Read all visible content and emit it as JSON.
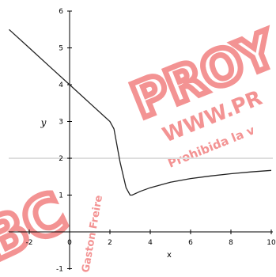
{
  "chart_data": {
    "type": "line",
    "title": "",
    "xlabel": "x",
    "ylabel": "y",
    "xlim": [
      -3,
      10
    ],
    "ylim": [
      -1,
      6
    ],
    "xticks": [
      -2,
      0,
      2,
      4,
      6,
      8,
      10
    ],
    "yticks": [
      -1,
      1,
      2,
      3,
      4,
      5,
      6
    ],
    "x_tick_labels": [
      "-2",
      "0",
      "2",
      "4",
      "6",
      "8",
      "10"
    ],
    "y_tick_labels": [
      "-1",
      "1",
      "2",
      "3",
      "4",
      "5",
      "6"
    ],
    "series": [
      {
        "color": "#222222",
        "x": [
          -3,
          -2,
          -1,
          0,
          1,
          2,
          2.2,
          2.5,
          2.8,
          3.0,
          3.1,
          3.5,
          4,
          5,
          6,
          7,
          8,
          9,
          10
        ],
        "y": [
          5.5,
          5.0,
          4.5,
          4.0,
          3.5,
          3.0,
          2.8,
          1.9,
          1.2,
          1.0,
          1.0,
          1.1,
          1.2,
          1.35,
          1.45,
          1.52,
          1.58,
          1.63,
          1.67
        ]
      }
    ],
    "reference_line": {
      "y": 2,
      "color": "#dddddd"
    },
    "grid": false
  },
  "watermarks": [
    {
      "text": "PROY",
      "color": "#f07070"
    },
    {
      "text": "WWW.PR",
      "color": "#f07070"
    },
    {
      "text": "Prohibida la v",
      "color": "#f07070"
    },
    {
      "text": "BC",
      "color": "#f07070"
    },
    {
      "text": "Gaston Freire",
      "color": "#f07070"
    }
  ]
}
